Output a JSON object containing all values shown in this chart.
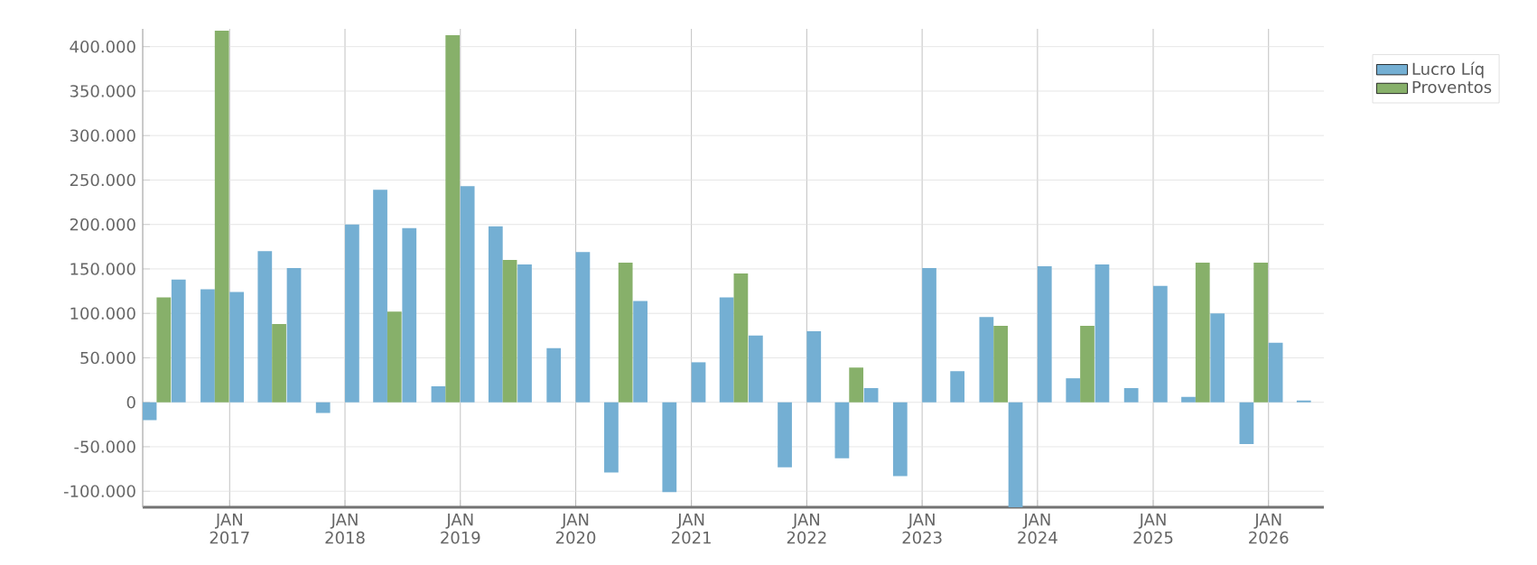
{
  "chart_data": {
    "type": "bar",
    "x": [
      "2016-05-15",
      "2016-08-15",
      "2016-11-15",
      "2017-02-15",
      "2017-05-15",
      "2017-08-15",
      "2017-11-15",
      "2018-02-15",
      "2018-05-15",
      "2018-08-15",
      "2018-11-15",
      "2019-02-15",
      "2019-05-15",
      "2019-08-15",
      "2019-11-15",
      "2020-02-15",
      "2020-05-15",
      "2020-08-15",
      "2020-11-15",
      "2021-02-15",
      "2021-05-15",
      "2021-08-15",
      "2021-11-15",
      "2022-02-15",
      "2022-05-15",
      "2022-08-15",
      "2022-11-15",
      "2023-02-15",
      "2023-05-15",
      "2023-08-15",
      "2023-11-15",
      "2024-02-15",
      "2024-05-15",
      "2024-08-15",
      "2024-11-15",
      "2025-02-15",
      "2025-05-15",
      "2025-08-15",
      "2025-11-15",
      "2026-02-15",
      "2026-05-15"
    ],
    "xlim": [
      "2016-04-01",
      "2026-06-25"
    ],
    "xticks": [
      {
        "value": "2017-01-01",
        "label": "JAN 2017"
      },
      {
        "value": "2018-01-01",
        "label": "JAN 2018"
      },
      {
        "value": "2019-01-01",
        "label": "JAN 2019"
      },
      {
        "value": "2020-01-01",
        "label": "JAN 2020"
      },
      {
        "value": "2021-01-01",
        "label": "JAN 2021"
      },
      {
        "value": "2022-01-01",
        "label": "JAN 2022"
      },
      {
        "value": "2023-01-01",
        "label": "JAN 2023"
      },
      {
        "value": "2024-01-01",
        "label": "JAN 2024"
      },
      {
        "value": "2025-01-01",
        "label": "JAN 2025"
      },
      {
        "value": "2026-01-01",
        "label": "JAN 2026"
      }
    ],
    "ylim": [
      -118000,
      420000
    ],
    "yticks": [
      {
        "value": -100000,
        "label": "-100.000"
      },
      {
        "value": -50000,
        "label": "-50.000"
      },
      0,
      {
        "value": 50000,
        "label": "50.000"
      },
      {
        "value": 100000,
        "label": "100.000"
      },
      {
        "value": 150000,
        "label": "150.000"
      },
      {
        "value": 200000,
        "label": "200.000"
      },
      {
        "value": 250000,
        "label": "250.000"
      },
      {
        "value": 300000,
        "label": "300.000"
      },
      {
        "value": 350000,
        "label": "350.000"
      },
      {
        "value": 400000,
        "label": "400.000"
      }
    ],
    "grid": true,
    "legend": "top right",
    "series": [
      {
        "name": "Lucro Líq",
        "color": "#74afd3",
        "values": [
          -20000,
          138000,
          127000,
          124000,
          170000,
          151000,
          -12000,
          200000,
          239000,
          196000,
          18000,
          243000,
          198000,
          155000,
          61000,
          169000,
          -79000,
          114000,
          -101000,
          45000,
          118000,
          75000,
          -73000,
          80000,
          -63000,
          16000,
          -83000,
          151000,
          35000,
          96000,
          -118000,
          153000,
          27000,
          155000,
          16000,
          131000,
          6000,
          100000,
          -47000,
          67000,
          2000
        ]
      },
      {
        "name": "Proventos",
        "color": "#87b06a",
        "values": [
          118000,
          0,
          418000,
          0,
          88000,
          0,
          0,
          0,
          102000,
          0,
          413000,
          0,
          160000,
          0,
          0,
          0,
          157000,
          0,
          0,
          0,
          145000,
          0,
          0,
          0,
          39000,
          0,
          0,
          0,
          0,
          86000,
          0,
          0,
          86000,
          0,
          0,
          0,
          157000,
          0,
          157000,
          0,
          0
        ]
      }
    ]
  }
}
